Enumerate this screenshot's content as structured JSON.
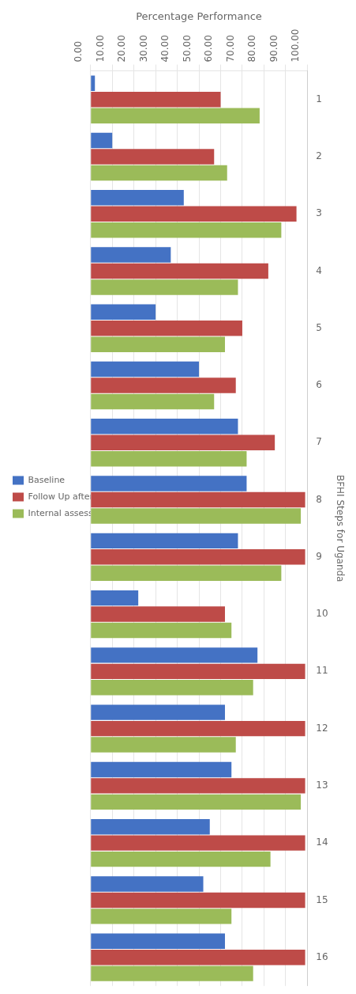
{
  "chart_data": {
    "type": "bar",
    "orientation": "horizontal",
    "xlabel": "Percentage Performance",
    "ylabel": "BFHI Steps for Uganda",
    "categories": [
      "1",
      "2",
      "3",
      "4",
      "5",
      "6",
      "7",
      "8",
      "9",
      "10",
      "11",
      "12",
      "13",
      "14",
      "15",
      "16"
    ],
    "series": [
      {
        "name": "Baseline",
        "color": "#4472C4",
        "values": [
          2.0,
          10.0,
          43.0,
          37.0,
          30.0,
          50.0,
          68.0,
          72.0,
          68.0,
          22.0,
          77.0,
          62.0,
          65.0,
          55.0,
          52.0,
          62.0
        ]
      },
      {
        "name": "Follow Up after Training",
        "color": "#BE4B48",
        "values": [
          60.0,
          57.0,
          95.0,
          82.0,
          70.0,
          67.0,
          85.0,
          99.0,
          99.0,
          62.0,
          99.0,
          99.0,
          99.0,
          99.0,
          99.0,
          99.0
        ]
      },
      {
        "name": "Internal assessment",
        "color": "#9BBB59",
        "values": [
          78.0,
          63.0,
          88.0,
          68.0,
          62.0,
          57.0,
          72.0,
          97.0,
          88.0,
          65.0,
          75.0,
          67.0,
          97.0,
          83.0,
          65.0,
          75.0
        ]
      }
    ],
    "xlim": [
      0,
      100
    ],
    "xticks": [
      {
        "value": 0,
        "label": "0.00"
      },
      {
        "value": 10,
        "label": "10.00"
      },
      {
        "value": 20,
        "label": "20.00"
      },
      {
        "value": 30,
        "label": "30.00"
      },
      {
        "value": 40,
        "label": "40.00"
      },
      {
        "value": 50,
        "label": "50.00"
      },
      {
        "value": 60,
        "label": "60.00"
      },
      {
        "value": 70,
        "label": "70.00"
      },
      {
        "value": 80,
        "label": "80.00"
      },
      {
        "value": 90,
        "label": "90.00"
      },
      {
        "value": 100,
        "label": "100.00"
      }
    ],
    "grid": true,
    "legend": "left"
  }
}
